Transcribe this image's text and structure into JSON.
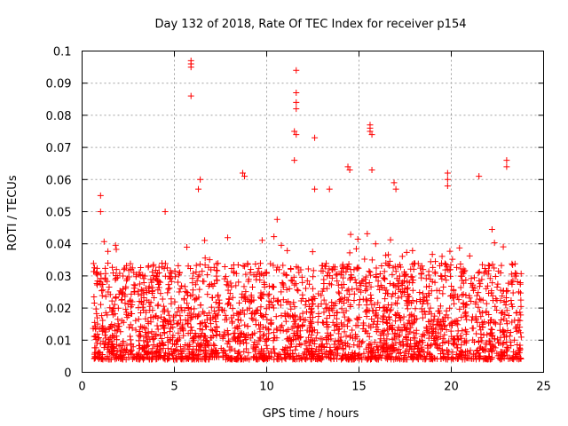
{
  "chart_data": {
    "type": "scatter",
    "title": "Day 132 of 2018, Rate Of TEC Index for receiver p154",
    "xlabel": "GPS time / hours",
    "ylabel": "ROTI / TECUs",
    "xlim": [
      0,
      25
    ],
    "ylim": [
      0,
      0.1
    ],
    "xticks": [
      "0",
      "5",
      "10",
      "15",
      "20",
      "25"
    ],
    "yticks": [
      "0",
      "0.01",
      "0.02",
      "0.03",
      "0.04",
      "0.05",
      "0.06",
      "0.07",
      "0.08",
      "0.09",
      "0.1"
    ],
    "grid": true,
    "marker": "plus",
    "color": "#ff0000",
    "point_density": {
      "x_range": [
        0.6,
        23.8
      ],
      "typical_range": [
        0.005,
        0.03
      ]
    },
    "outliers": [
      {
        "x": 5.9,
        "y": 0.097
      },
      {
        "x": 5.9,
        "y": 0.096
      },
      {
        "x": 5.9,
        "y": 0.095
      },
      {
        "x": 5.9,
        "y": 0.086
      },
      {
        "x": 11.6,
        "y": 0.094
      },
      {
        "x": 11.6,
        "y": 0.087
      },
      {
        "x": 11.6,
        "y": 0.084
      },
      {
        "x": 11.6,
        "y": 0.082
      },
      {
        "x": 11.5,
        "y": 0.075
      },
      {
        "x": 11.6,
        "y": 0.074
      },
      {
        "x": 12.6,
        "y": 0.073
      },
      {
        "x": 15.6,
        "y": 0.077
      },
      {
        "x": 15.6,
        "y": 0.076
      },
      {
        "x": 15.6,
        "y": 0.075
      },
      {
        "x": 15.7,
        "y": 0.074
      },
      {
        "x": 15.7,
        "y": 0.063
      },
      {
        "x": 23.0,
        "y": 0.066
      },
      {
        "x": 23.0,
        "y": 0.064
      },
      {
        "x": 21.5,
        "y": 0.061
      },
      {
        "x": 19.8,
        "y": 0.062
      },
      {
        "x": 19.8,
        "y": 0.06
      },
      {
        "x": 19.8,
        "y": 0.058
      },
      {
        "x": 8.7,
        "y": 0.062
      },
      {
        "x": 8.8,
        "y": 0.061
      },
      {
        "x": 11.5,
        "y": 0.066
      },
      {
        "x": 14.4,
        "y": 0.064
      },
      {
        "x": 14.5,
        "y": 0.063
      },
      {
        "x": 16.9,
        "y": 0.059
      },
      {
        "x": 17.0,
        "y": 0.057
      },
      {
        "x": 6.4,
        "y": 0.06
      },
      {
        "x": 6.3,
        "y": 0.057
      },
      {
        "x": 1.0,
        "y": 0.055
      },
      {
        "x": 1.0,
        "y": 0.05
      },
      {
        "x": 4.5,
        "y": 0.05
      },
      {
        "x": 12.6,
        "y": 0.057
      },
      {
        "x": 13.4,
        "y": 0.057
      }
    ]
  }
}
